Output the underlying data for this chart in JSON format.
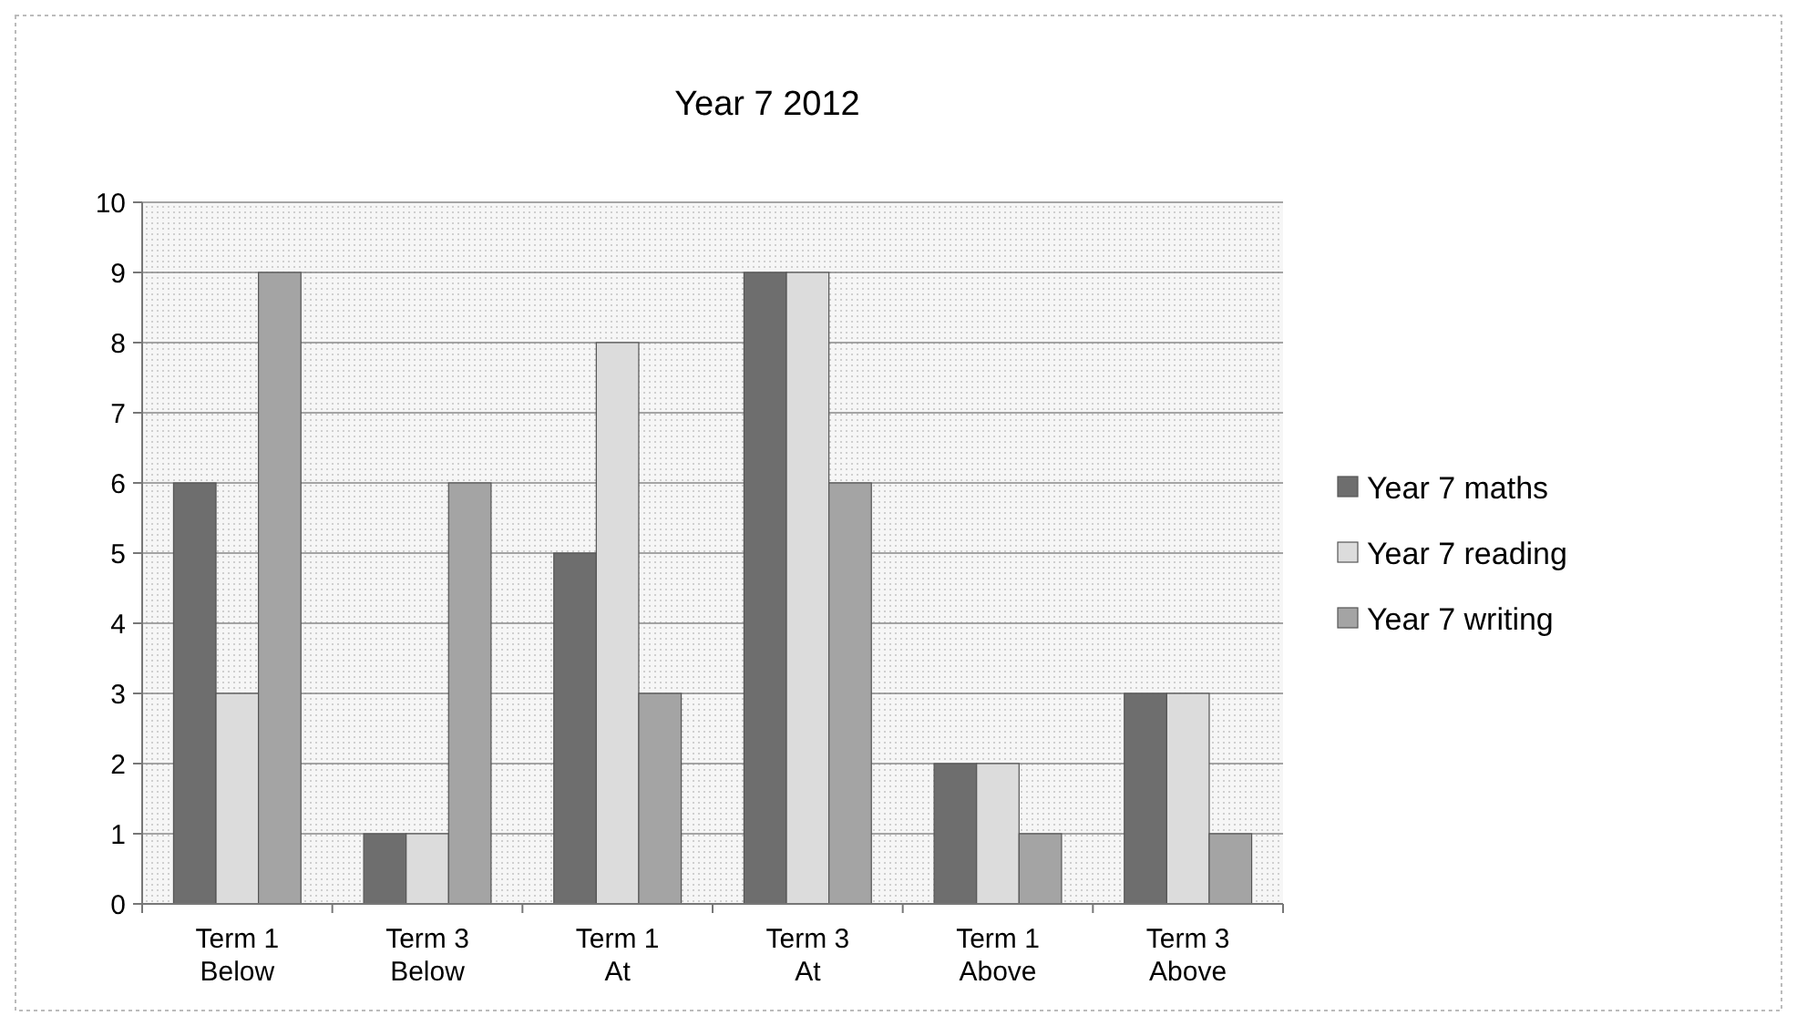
{
  "chart_data": {
    "type": "bar",
    "title": "Year 7 2012",
    "categories": [
      "Term 1\nBelow",
      "Term 3\nBelow",
      "Term 1\nAt",
      "Term 3\nAt",
      "Term 1\nAbove",
      "Term 3\nAbove"
    ],
    "series": [
      {
        "name": "Year 7 maths",
        "color": "#6e6e6e",
        "values": [
          6,
          1,
          5,
          9,
          2,
          3
        ]
      },
      {
        "name": "Year 7 reading",
        "color": "#dcdcdc",
        "values": [
          3,
          1,
          8,
          9,
          2,
          3
        ]
      },
      {
        "name": "Year 7 writing",
        "color": "#a4a4a4",
        "values": [
          9,
          6,
          3,
          6,
          1,
          1
        ]
      }
    ],
    "ylim": [
      0,
      10
    ],
    "yticks": [
      0,
      1,
      2,
      3,
      4,
      5,
      6,
      7,
      8,
      9,
      10
    ],
    "grid": "y",
    "legend": "right"
  }
}
